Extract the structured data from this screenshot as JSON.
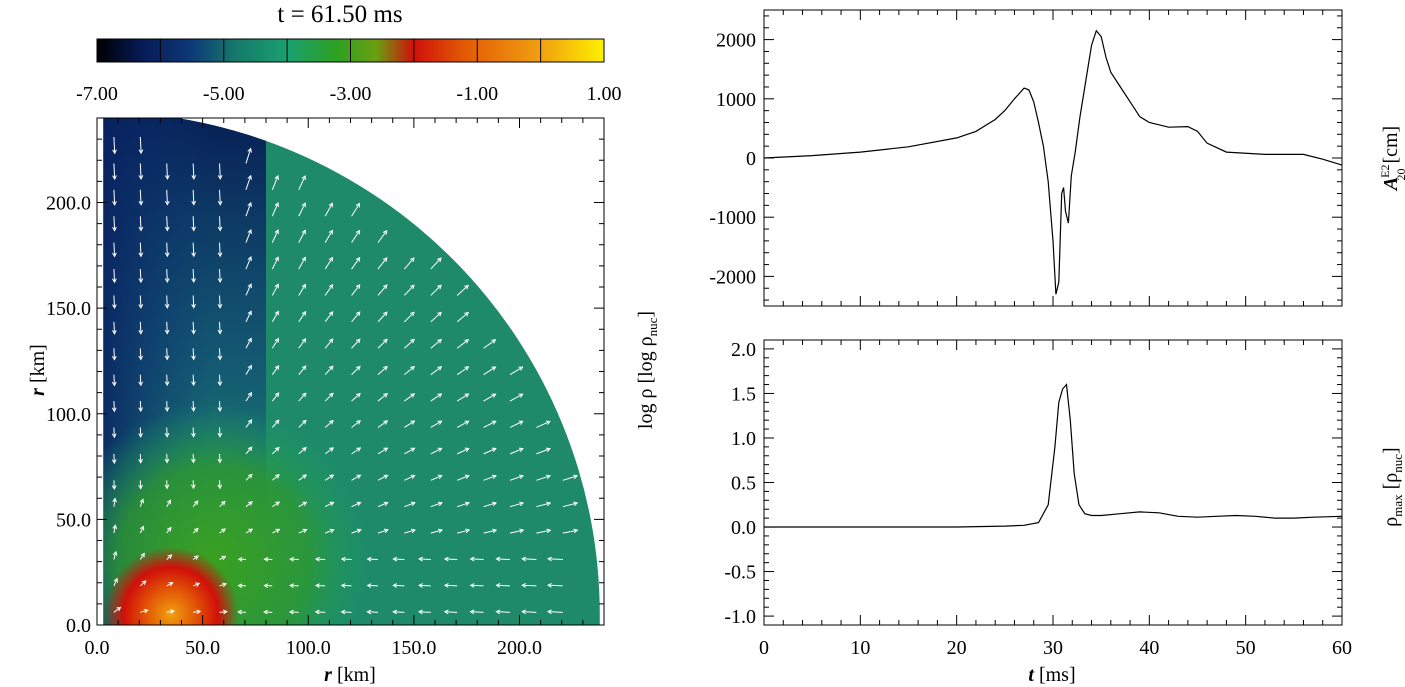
{
  "title": "t = 61.50 ms",
  "colors": {
    "axis": "#000000",
    "line": "#000000",
    "arrow": "#ffffff",
    "background": "#ffffff"
  },
  "colorbar": {
    "ticks": [
      "-7.00",
      "-5.00",
      "-3.00",
      "-1.00",
      "1.00"
    ],
    "range": [
      -7,
      1
    ],
    "stops": [
      {
        "v": -7.0,
        "c": "#000000"
      },
      {
        "v": -6.3,
        "c": "#061a55"
      },
      {
        "v": -5.5,
        "c": "#0d3a78"
      },
      {
        "v": -4.8,
        "c": "#157a6a"
      },
      {
        "v": -4.0,
        "c": "#1aa070"
      },
      {
        "v": -3.2,
        "c": "#2ea020"
      },
      {
        "v": -2.6,
        "c": "#6aa010"
      },
      {
        "v": -2.0,
        "c": "#d0100a"
      },
      {
        "v": -1.2,
        "c": "#e35a05"
      },
      {
        "v": 0.0,
        "c": "#f0a010"
      },
      {
        "v": 1.0,
        "c": "#fff000"
      }
    ],
    "label": "log ρ [log ρ",
    "label_sub": "nuc",
    "label_end": "]"
  },
  "density_map": {
    "xlabel_var": "r",
    "xlabel_unit": " [km]",
    "ylabel_var": "r",
    "ylabel_unit": " [km]",
    "xticks": [
      "0.0",
      "50.0",
      "100.0",
      "150.0",
      "200.0"
    ],
    "yticks": [
      "0.0",
      "50.0",
      "100.0",
      "150.0",
      "200.0"
    ],
    "xlim": [
      0,
      240
    ],
    "ylim": [
      0,
      240
    ]
  },
  "chart_data": [
    {
      "type": "line",
      "ylabel_var": "A",
      "ylabel_sup": "E2",
      "ylabel_sub": "20",
      "ylabel_unit": " [cm]",
      "xlim": [
        0,
        60
      ],
      "ylim": [
        -2500,
        2500
      ],
      "yticks": [
        "-2000",
        "-1000",
        "0",
        "1000",
        "2000"
      ],
      "ytick_values": [
        -2000,
        -1000,
        0,
        1000,
        2000
      ],
      "x": [
        0,
        5,
        10,
        15,
        20,
        22,
        24,
        25,
        26,
        27,
        27.5,
        28,
        28.5,
        29,
        29.5,
        30,
        30.3,
        30.6,
        30.9,
        31.1,
        31.3,
        31.6,
        31.9,
        32.3,
        32.8,
        33.3,
        34,
        34.5,
        35,
        35.5,
        36,
        37,
        38,
        39,
        40,
        42,
        44,
        45,
        46,
        48,
        52,
        56,
        58,
        60
      ],
      "y": [
        0,
        40,
        100,
        190,
        340,
        450,
        650,
        800,
        1000,
        1180,
        1150,
        950,
        600,
        200,
        -400,
        -1400,
        -2300,
        -2100,
        -600,
        -500,
        -900,
        -1100,
        -300,
        100,
        700,
        1200,
        1900,
        2150,
        2050,
        1700,
        1450,
        1200,
        950,
        700,
        600,
        520,
        530,
        450,
        250,
        100,
        60,
        60,
        -20,
        -120
      ]
    },
    {
      "type": "line",
      "ylabel_var": "ρ",
      "ylabel_sub": "max",
      "ylabel_unit": " [ρ",
      "ylabel_unit_sub": "nuc",
      "ylabel_end": "]",
      "xlabel_var": "t",
      "xlabel_unit": " [ms]",
      "xlim": [
        0,
        60
      ],
      "ylim": [
        -1.1,
        2.1
      ],
      "xticks": [
        "0",
        "10",
        "20",
        "30",
        "40",
        "50",
        "60"
      ],
      "xtick_values": [
        0,
        10,
        20,
        30,
        40,
        50,
        60
      ],
      "yticks": [
        "-1.0",
        "-0.5",
        "0.0",
        "0.5",
        "1.0",
        "1.5",
        "2.0"
      ],
      "ytick_values": [
        -1.0,
        -0.5,
        0.0,
        0.5,
        1.0,
        1.5,
        2.0
      ],
      "x": [
        0,
        10,
        20,
        25,
        27,
        28.5,
        29.5,
        30.2,
        30.6,
        31,
        31.4,
        31.8,
        32.2,
        32.7,
        33.3,
        34,
        35,
        37,
        39,
        41,
        43,
        45,
        47,
        49,
        51,
        53,
        55,
        57,
        60
      ],
      "y": [
        0,
        0,
        0,
        0.01,
        0.02,
        0.05,
        0.25,
        0.9,
        1.4,
        1.55,
        1.6,
        1.2,
        0.6,
        0.25,
        0.15,
        0.13,
        0.13,
        0.15,
        0.17,
        0.16,
        0.12,
        0.11,
        0.12,
        0.13,
        0.12,
        0.1,
        0.1,
        0.11,
        0.12
      ]
    }
  ]
}
